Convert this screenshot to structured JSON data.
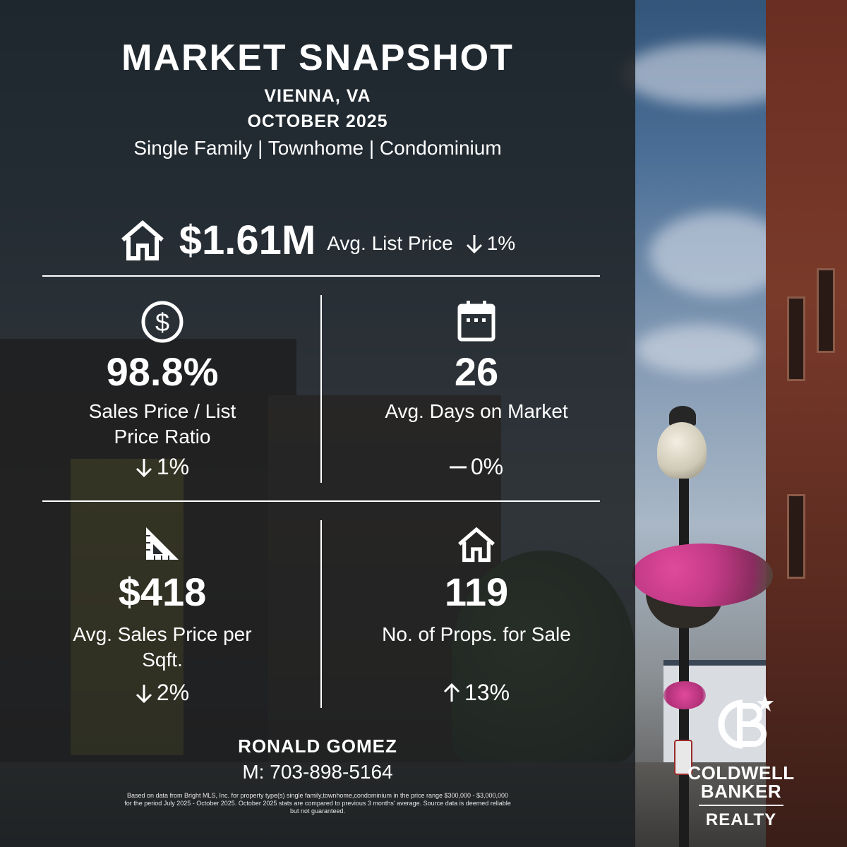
{
  "header": {
    "title": "MARKET SNAPSHOT",
    "city": "VIENNA, VA",
    "month": "OCTOBER 2025",
    "property_types": "Single Family | Townhome | Condominium"
  },
  "headline": {
    "icon": "house-icon",
    "value": "$1.61M",
    "label": "Avg. List Price",
    "change_direction": "down",
    "change": "1%"
  },
  "metrics": [
    {
      "icon": "dollar-circle-icon",
      "value": "98.8%",
      "label_line1": "Sales Price / List",
      "label_line2": "Price Ratio",
      "change_direction": "down",
      "change": "1%"
    },
    {
      "icon": "calendar-icon",
      "value": "26",
      "label_line1": "Avg. Days on Market",
      "label_line2": "",
      "change_direction": "flat",
      "change": "0%"
    },
    {
      "icon": "set-square-icon",
      "value": "$418",
      "label_line1": "Avg. Sales Price per",
      "label_line2": "Sqft.",
      "change_direction": "down",
      "change": "2%"
    },
    {
      "icon": "house-icon",
      "value": "119",
      "label_line1": "No. of Props. for Sale",
      "label_line2": "",
      "change_direction": "up",
      "change": "13%"
    }
  ],
  "agent": {
    "name": "RONALD GOMEZ",
    "phone": "M: 703-898-5164"
  },
  "disclaimer": {
    "line1": "Based on data from Bright MLS, Inc. for property type(s) single family,townhome,condominium in the price range $300,000 - $3,000,000",
    "line2": "for the period July 2025 - October 2025. October 2025 stats are compared to previous 3 months' average. Source data is deemed reliable",
    "line3": "but not guaranteed."
  },
  "logo": {
    "monogram": "CB",
    "line1": "COLDWELL",
    "line2": "BANKER",
    "line3": "REALTY"
  },
  "colors": {
    "text": "#ffffff",
    "overlay": "#1c1f22"
  }
}
